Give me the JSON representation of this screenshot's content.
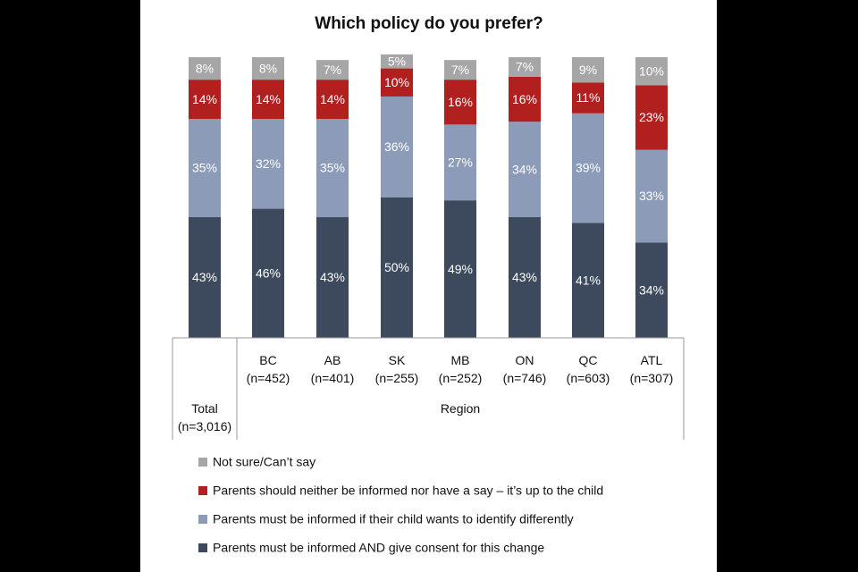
{
  "chart_data": {
    "type": "bar",
    "stacked": true,
    "title": "Which policy do you prefer?",
    "categories": [
      {
        "label": "Total",
        "sub": "(n=3,016)"
      },
      {
        "label": "BC",
        "sub": "(n=452)"
      },
      {
        "label": "AB",
        "sub": "(n=401)"
      },
      {
        "label": "SK",
        "sub": "(n=255)"
      },
      {
        "label": "MB",
        "sub": "(n=252)"
      },
      {
        "label": "ON",
        "sub": "(n=746)"
      },
      {
        "label": "QC",
        "sub": "(n=603)"
      },
      {
        "label": "ATL",
        "sub": "(n=307)"
      }
    ],
    "group_label": "Region",
    "ylim": [
      0,
      100
    ],
    "series": [
      {
        "name": "Parents must be informed AND give consent for this change",
        "color": "#3d4a5e",
        "values": [
          43,
          46,
          43,
          50,
          49,
          43,
          41,
          34
        ]
      },
      {
        "name": "Parents must be informed if their child wants to identify differently",
        "color": "#8c9bb8",
        "values": [
          35,
          32,
          35,
          36,
          27,
          34,
          39,
          33
        ]
      },
      {
        "name": "Parents should neither be informed nor have a say – it’s up to the child",
        "color": "#b11f1f",
        "values": [
          14,
          14,
          14,
          10,
          16,
          16,
          11,
          23
        ]
      },
      {
        "name": "Not sure/Can’t say",
        "color": "#a6a6a6",
        "values": [
          8,
          8,
          7,
          5,
          7,
          7,
          9,
          10
        ]
      }
    ],
    "legend_order": [
      3,
      2,
      1,
      0
    ],
    "legend_position": "bottom",
    "value_suffix": "%"
  }
}
